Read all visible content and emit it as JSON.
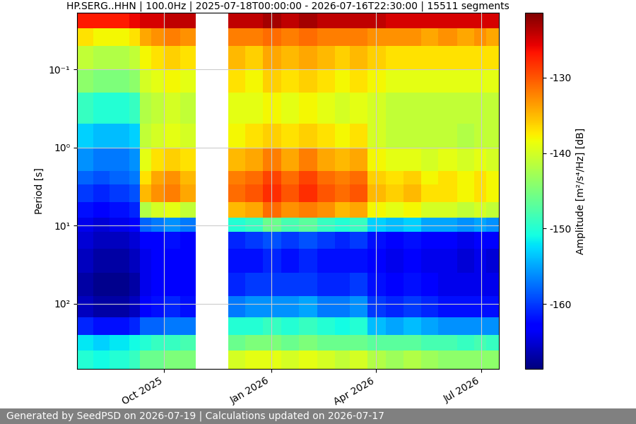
{
  "chart_data": {
    "type": "heatmap",
    "title": "HP.SERG..HHN | 100.0Hz | 2025-07-18T00:00:00 - 2026-07-16T22:30:00 | 15511 segments",
    "y_label": "Period [s]",
    "footer": "Generated by SeedPSD on 2026-07-19 | Calculations updated on 2026-07-17",
    "color": "jet",
    "log": "y",
    "grid": true,
    "x": [
      "2025-07-18",
      "2025-08-01",
      "2025-08-15",
      "2025-09-01",
      "2025-09-10",
      "2025-09-20",
      "2025-10-01",
      "2025-10-15",
      "2025-10-28",
      "2025-11-25",
      "2025-12-10",
      "2025-12-25",
      "2026-01-10",
      "2026-01-25",
      "2026-02-10",
      "2026-02-25",
      "2026-03-10",
      "2026-03-25",
      "2026-04-10",
      "2026-04-25",
      "2026-05-10",
      "2026-05-25",
      "2026-06-10",
      "2026-06-25",
      "2026-07-05",
      "2026-07-16"
    ],
    "y": [
      0.0188,
      0.03,
      0.05,
      0.1,
      0.2,
      0.5,
      1,
      2,
      3,
      5,
      8,
      12,
      20,
      40,
      80,
      150,
      250,
      400,
      686
    ],
    "cells": [
      [
        -127,
        -137,
        -141,
        -144,
        -149,
        -153,
        -156,
        -158,
        -160,
        -162,
        -164,
        -165,
        -166,
        -167,
        -166,
        -161,
        -152,
        -150
      ],
      [
        -127,
        -138,
        -142,
        -145,
        -150,
        -154,
        -157,
        -159,
        -161,
        -163,
        -165,
        -166,
        -167,
        -168,
        -167,
        -162,
        -153,
        -151
      ],
      [
        -127,
        -138,
        -142,
        -145,
        -150,
        -154,
        -157,
        -158,
        -160,
        -162,
        -164,
        -166,
        -167,
        -168,
        -167,
        -162,
        -152,
        -150
      ],
      [
        -126,
        -137,
        -141,
        -144,
        -149,
        -153,
        -156,
        -157,
        -159,
        -161,
        -163,
        -165,
        -166,
        -167,
        -166,
        -161,
        -151,
        -149
      ],
      [
        -125,
        -134,
        -138,
        -140,
        -142,
        -141,
        -139,
        -137,
        -135,
        -142,
        -158,
        -163,
        -164,
        -164,
        -163,
        -158,
        -150,
        -146
      ],
      [
        -125,
        -133,
        -137,
        -139,
        -141,
        -140,
        -137,
        -134,
        -133,
        -140,
        -157,
        -163,
        -163,
        -163,
        -162,
        -158,
        -149,
        -146
      ],
      [
        -124,
        -132,
        -136,
        -138,
        -140,
        -139,
        -136,
        -133,
        -132,
        -139,
        -156,
        -162,
        -163,
        -163,
        -161,
        -157,
        -149,
        -145
      ],
      [
        -124,
        -133,
        -137,
        -139,
        -141,
        -140,
        -137,
        -135,
        -134,
        -141,
        -157,
        -163,
        -163,
        -163,
        -162,
        -157,
        -148,
        -145
      ],
      [
        null,
        null,
        null,
        null,
        null,
        null,
        null,
        null,
        null,
        null,
        null,
        null,
        null,
        null,
        null,
        null,
        null,
        null
      ],
      [
        -124,
        -132,
        -135,
        -137,
        -139,
        -138,
        -135,
        -132,
        -131,
        -135,
        -150,
        -161,
        -162,
        -161,
        -157,
        -150,
        -146,
        -140
      ],
      [
        -124,
        -132,
        -136,
        -138,
        -139,
        -137,
        -134,
        -131,
        -130,
        -134,
        -149,
        -160,
        -162,
        -160,
        -156,
        -150,
        -145,
        -139
      ],
      [
        -123,
        -131,
        -134,
        -136,
        -138,
        -136,
        -132,
        -129,
        -128,
        -131,
        -146,
        -159,
        -161,
        -160,
        -156,
        -149,
        -145,
        -139
      ],
      [
        -124,
        -132,
        -135,
        -137,
        -139,
        -137,
        -134,
        -131,
        -130,
        -133,
        -148,
        -160,
        -162,
        -160,
        -156,
        -150,
        -146,
        -140
      ],
      [
        -123,
        -131,
        -134,
        -136,
        -138,
        -136,
        -132,
        -129,
        -128,
        -132,
        -147,
        -159,
        -161,
        -160,
        -155,
        -149,
        -145,
        -139
      ],
      [
        -124,
        -132,
        -135,
        -137,
        -139,
        -137,
        -134,
        -131,
        -130,
        -133,
        -149,
        -160,
        -162,
        -161,
        -157,
        -150,
        -146,
        -140
      ],
      [
        -124,
        -132,
        -136,
        -138,
        -140,
        -138,
        -135,
        -132,
        -131,
        -135,
        -150,
        -161,
        -162,
        -161,
        -157,
        -151,
        -146,
        -141
      ],
      [
        -124,
        -132,
        -135,
        -137,
        -139,
        -137,
        -134,
        -131,
        -130,
        -134,
        -149,
        -160,
        -162,
        -160,
        -156,
        -150,
        -146,
        -140
      ],
      [
        -124,
        -133,
        -136,
        -138,
        -140,
        -140,
        -138,
        -136,
        -135,
        -138,
        -153,
        -162,
        -163,
        -162,
        -160,
        -154,
        -147,
        -142
      ],
      [
        -125,
        -133,
        -137,
        -139,
        -141,
        -141,
        -139,
        -137,
        -136,
        -139,
        -154,
        -163,
        -164,
        -163,
        -161,
        -155,
        -147,
        -143
      ],
      [
        -125,
        -133,
        -137,
        -139,
        -141,
        -141,
        -139,
        -136,
        -135,
        -138,
        -153,
        -162,
        -163,
        -162,
        -160,
        -154,
        -147,
        -142
      ],
      [
        -125,
        -134,
        -137,
        -139,
        -141,
        -141,
        -140,
        -138,
        -137,
        -140,
        -155,
        -163,
        -164,
        -163,
        -161,
        -155,
        -148,
        -143
      ],
      [
        -125,
        -133,
        -137,
        -139,
        -141,
        -141,
        -139,
        -137,
        -137,
        -140,
        -155,
        -163,
        -164,
        -164,
        -162,
        -156,
        -148,
        -144
      ],
      [
        -125,
        -134,
        -137,
        -139,
        -141,
        -142,
        -140,
        -138,
        -138,
        -141,
        -156,
        -164,
        -165,
        -164,
        -162,
        -156,
        -149,
        -144
      ],
      [
        -125,
        -133,
        -137,
        -139,
        -141,
        -141,
        -139,
        -137,
        -137,
        -140,
        -155,
        -163,
        -164,
        -164,
        -162,
        -156,
        -148,
        -144
      ],
      [
        -125,
        -134,
        -137,
        -139,
        -141,
        -141,
        -140,
        -138,
        -138,
        -141,
        -156,
        -163,
        -165,
        -164,
        -162,
        -156,
        -149,
        -144
      ]
    ],
    "xlim": [
      "2025-07-18",
      "2026-07-16"
    ],
    "xticks": [
      {
        "value": "2025-10-01",
        "label": "Oct 2025"
      },
      {
        "value": "2026-01-01",
        "label": "Jan 2026"
      },
      {
        "value": "2026-04-01",
        "label": "Apr 2026"
      },
      {
        "value": "2026-07-01",
        "label": "Jul 2026"
      }
    ],
    "ylim": [
      686,
      0.0188
    ],
    "yticks": [
      {
        "value": 0.1,
        "label": "10⁻¹"
      },
      {
        "value": 1,
        "label": "10⁰"
      },
      {
        "value": 10,
        "label": "10¹"
      },
      {
        "value": 100,
        "label": "10²"
      }
    ],
    "colorbar": {
      "label": "Amplitude [m²/s⁴/Hz] [dB]",
      "range": [
        -168.6,
        -121.4
      ],
      "ticks": [
        -130,
        -140,
        -150,
        -160
      ]
    }
  }
}
